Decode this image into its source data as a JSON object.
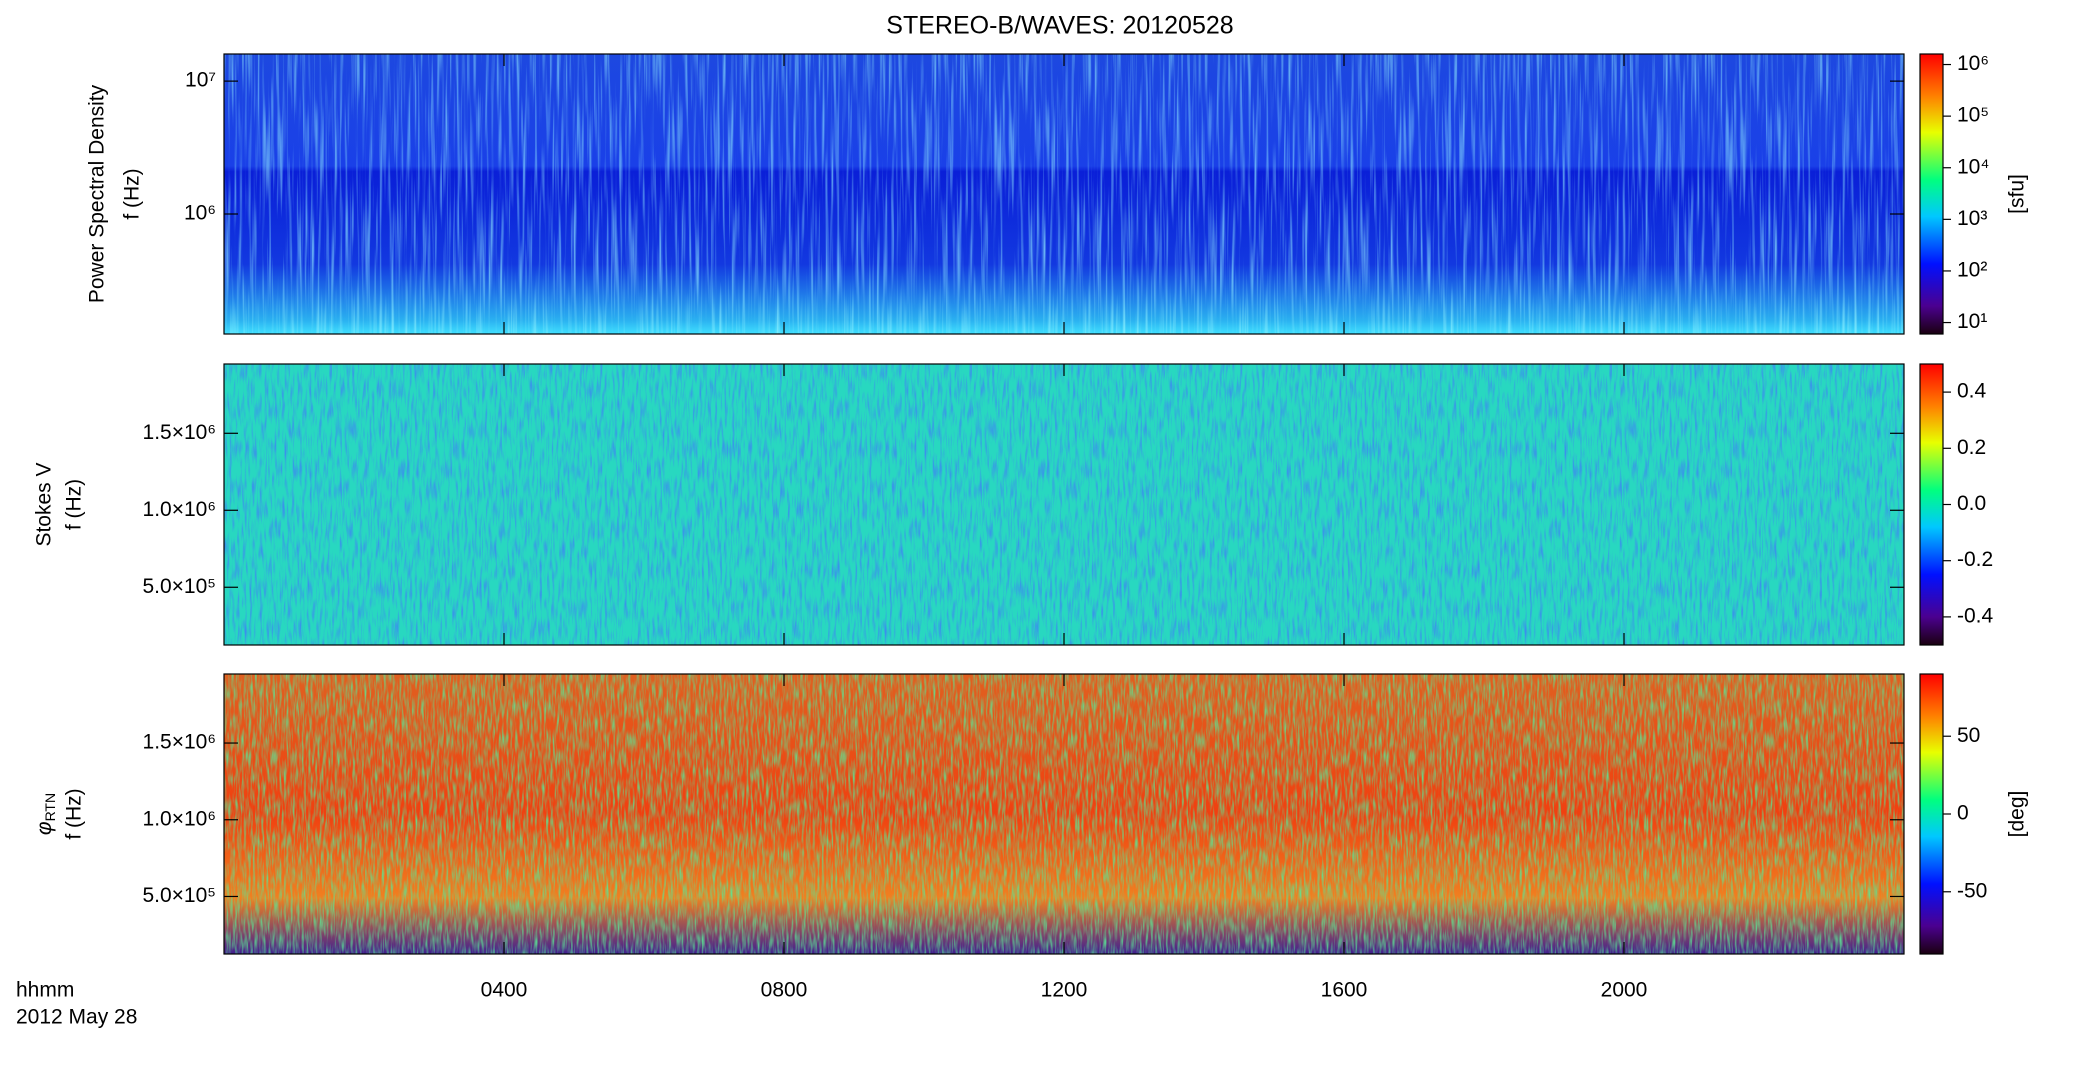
{
  "chart_data": [
    {
      "type": "heatmap",
      "title": "STEREO-B/WAVES: 20120528",
      "ylabel": "Power Spectral Density",
      "ylabel_unit": "f (Hz)",
      "log": true,
      "ylim": [
        125000,
        16000000
      ],
      "yticks": [
        {
          "value": 1000000,
          "label": "10⁶"
        },
        {
          "value": 10000000,
          "label": "10⁷"
        }
      ],
      "colorbar": {
        "log": true,
        "clim": [
          6,
          1600000
        ],
        "label": "[sfu]",
        "ticks": [
          {
            "value": 10,
            "label": "10¹"
          },
          {
            "value": 100,
            "label": "10²"
          },
          {
            "value": 1000,
            "label": "10³"
          },
          {
            "value": 10000,
            "label": "10⁴"
          },
          {
            "value": 100000,
            "label": "10⁵"
          },
          {
            "value": 1000000,
            "label": "10⁶"
          }
        ]
      }
    },
    {
      "type": "heatmap",
      "ylabel": "Stokes V",
      "ylabel_unit": "f (Hz)",
      "log": false,
      "ylim": [
        125000,
        1950000
      ],
      "yticks": [
        {
          "value": 500000,
          "label": "5.0×10⁵"
        },
        {
          "value": 1000000,
          "label": "1.0×10⁶"
        },
        {
          "value": 1500000,
          "label": "1.5×10⁶"
        }
      ],
      "colorbar": {
        "log": false,
        "clim": [
          -0.5,
          0.5
        ],
        "ticks": [
          -0.4,
          -0.2,
          {
            "value": 0,
            "label": "0.0"
          },
          0.2,
          0.4
        ]
      }
    },
    {
      "type": "heatmap",
      "ylabel": "φ",
      "ylabel_sub": "RTN",
      "ylabel_unit": "f (Hz)",
      "log": false,
      "ylim": [
        125000,
        1950000
      ],
      "yticks": [
        {
          "value": 500000,
          "label": "5.0×10⁵"
        },
        {
          "value": 1000000,
          "label": "1.0×10⁶"
        },
        {
          "value": 1500000,
          "label": "1.5×10⁶"
        }
      ],
      "colorbar": {
        "log": false,
        "clim": [
          -90,
          90
        ],
        "label": "[deg]",
        "ticks": [
          -50,
          0,
          50
        ]
      },
      "xlabel": "hhmm",
      "date": "2012 May 28",
      "xlim": [
        0,
        24
      ],
      "xticks": [
        {
          "value": 4,
          "label": "0400"
        },
        {
          "value": 8,
          "label": "0800"
        },
        {
          "value": 12,
          "label": "1200"
        },
        {
          "value": 16,
          "label": "1600"
        },
        {
          "value": 20,
          "label": "2000"
        }
      ]
    }
  ]
}
